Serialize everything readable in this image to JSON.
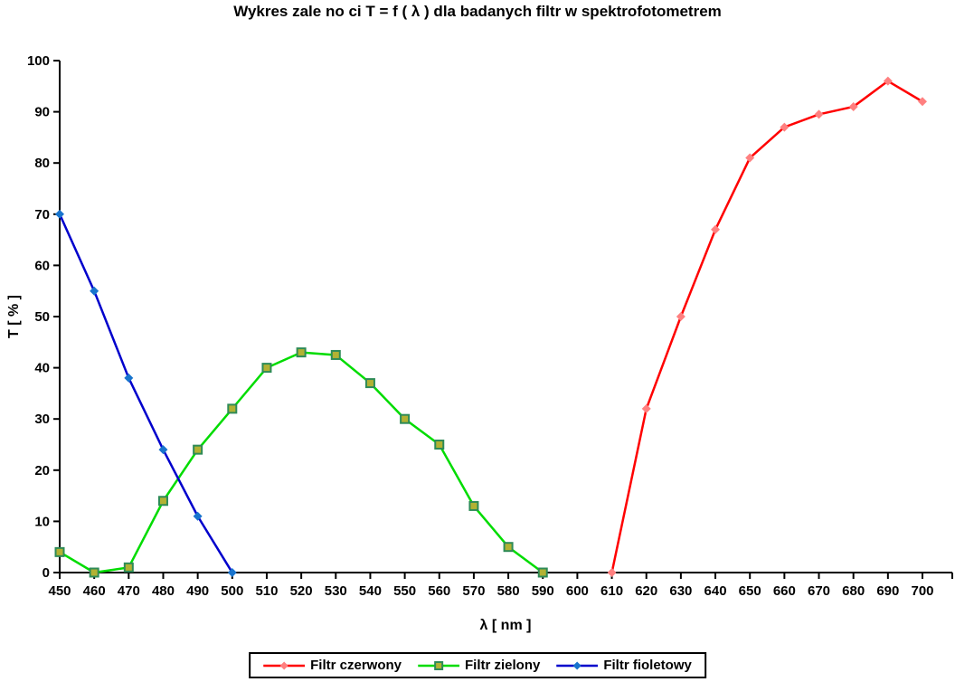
{
  "title": "Wykres zale no ci T = f ( λ ) dla badanych filtr w spektrofotometrem",
  "chart_data": {
    "type": "line",
    "title": "Wykres zale no ci T = f ( λ ) dla badanych filtr w spektrofotometrem",
    "xlabel": "λ [ nm ]",
    "ylabel": "T [ % ]",
    "xlim": [
      450,
      700
    ],
    "ylim": [
      0,
      100
    ],
    "grid": false,
    "background": "#FFFFFF",
    "axis_color": "#000000",
    "x_ticks": [
      450,
      460,
      470,
      480,
      490,
      500,
      510,
      520,
      530,
      540,
      550,
      560,
      570,
      580,
      590,
      600,
      610,
      620,
      630,
      640,
      650,
      660,
      670,
      680,
      690,
      700
    ],
    "y_ticks": [
      0,
      10,
      20,
      30,
      40,
      50,
      60,
      70,
      80,
      90,
      100
    ],
    "legend": {
      "position": "bottom-center",
      "entries": [
        "Filtr czerwony",
        "Filtr zielony",
        "Filtr fioletowy"
      ]
    },
    "series": [
      {
        "name": "Filtr czerwony",
        "line_color": "#FF0000",
        "marker": "diamond",
        "marker_color": "#FF8080",
        "points": [
          [
            610,
            0
          ],
          [
            620,
            32
          ],
          [
            630,
            50
          ],
          [
            640,
            67
          ],
          [
            650,
            81
          ],
          [
            660,
            87
          ],
          [
            670,
            89.5
          ],
          [
            680,
            91
          ],
          [
            690,
            96
          ],
          [
            700,
            92
          ]
        ]
      },
      {
        "name": "Filtr zielony",
        "line_color": "#00DC00",
        "marker": "square",
        "marker_color": "#B2B233",
        "marker_border_color": "#2E8B57",
        "points": [
          [
            450,
            4
          ],
          [
            460,
            0
          ],
          [
            470,
            1
          ],
          [
            480,
            14
          ],
          [
            490,
            24
          ],
          [
            500,
            32
          ],
          [
            510,
            40
          ],
          [
            520,
            43
          ],
          [
            530,
            42.5
          ],
          [
            540,
            37
          ],
          [
            550,
            30
          ],
          [
            560,
            25
          ],
          [
            570,
            13
          ],
          [
            580,
            5
          ],
          [
            590,
            0
          ]
        ]
      },
      {
        "name": "Filtr fioletowy",
        "line_color": "#0000CC",
        "marker": "diamond",
        "marker_color": "#1874CD",
        "points": [
          [
            450,
            70
          ],
          [
            460,
            55
          ],
          [
            470,
            38
          ],
          [
            480,
            24
          ],
          [
            490,
            11
          ],
          [
            500,
            0
          ]
        ]
      }
    ]
  }
}
